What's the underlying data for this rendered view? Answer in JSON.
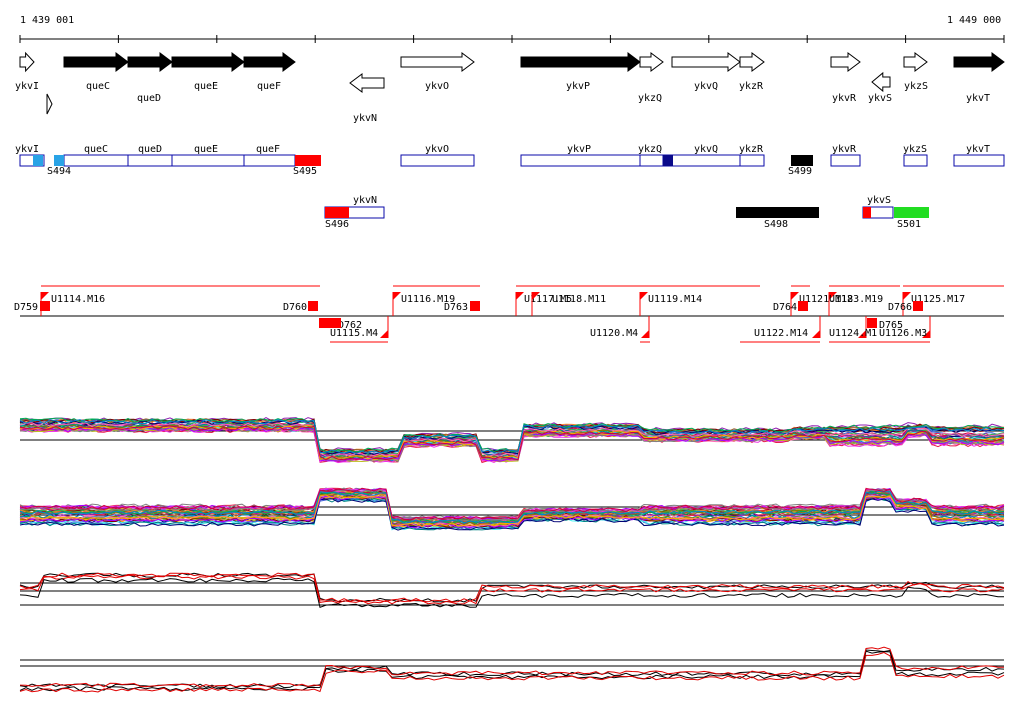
{
  "header": {
    "start_coord": "1 439 001",
    "end_coord": "1 449 000"
  },
  "genes": [
    {
      "name": "ykvI",
      "dir": "+",
      "fill": "white",
      "label_row": 1
    },
    {
      "name": "queC",
      "dir": "+",
      "fill": "black",
      "label_row": 1
    },
    {
      "name": "queD",
      "dir": "+",
      "fill": "black",
      "label_row": 2
    },
    {
      "name": "queE",
      "dir": "+",
      "fill": "black",
      "label_row": 1
    },
    {
      "name": "queF",
      "dir": "+",
      "fill": "black",
      "label_row": 1
    },
    {
      "name": "ykvN",
      "dir": "-",
      "fill": "white",
      "label_row": 3
    },
    {
      "name": "ykvO",
      "dir": "+",
      "fill": "white",
      "label_row": 1
    },
    {
      "name": "ykvP",
      "dir": "+",
      "fill": "black",
      "label_row": 1
    },
    {
      "name": "ykzQ",
      "dir": "+",
      "fill": "white",
      "label_row": 2
    },
    {
      "name": "ykvQ",
      "dir": "+",
      "fill": "white",
      "label_row": 1
    },
    {
      "name": "ykzR",
      "dir": "+",
      "fill": "white",
      "label_row": 1
    },
    {
      "name": "ykvR",
      "dir": "+",
      "fill": "white",
      "label_row": 2
    },
    {
      "name": "ykvS",
      "dir": "-",
      "fill": "white",
      "label_row": 2
    },
    {
      "name": "ykzS",
      "dir": "+",
      "fill": "white",
      "label_row": 1
    },
    {
      "name": "ykvT",
      "dir": "+",
      "fill": "black",
      "label_row": 2
    }
  ],
  "segments": [
    {
      "name": "S494",
      "color": "#29a3e6",
      "track": "top"
    },
    {
      "name": "S495",
      "color": "#ff0000",
      "track": "top"
    },
    {
      "name": "S496",
      "color": "#ff0000",
      "track": "lower"
    },
    {
      "name": "S498",
      "color": "#000000",
      "track": "lower"
    },
    {
      "name": "S499",
      "color": "#000000",
      "track": "top"
    },
    {
      "name": "S501",
      "color": "#22dd22",
      "track": "lower"
    }
  ],
  "upshifts": [
    {
      "name": "U1114.M16",
      "strand": "+"
    },
    {
      "name": "U1115.M4",
      "strand": "-"
    },
    {
      "name": "U1116.M19",
      "strand": "+"
    },
    {
      "name": "U1117.M5",
      "strand": "+"
    },
    {
      "name": "U1118.M11",
      "strand": "+"
    },
    {
      "name": "U1119.M14",
      "strand": "+"
    },
    {
      "name": "U1120.M4",
      "strand": "-"
    },
    {
      "name": "U1121.M18",
      "strand": "+"
    },
    {
      "name": "U1122.M14",
      "strand": "-"
    },
    {
      "name": "U1123.M19",
      "strand": "+"
    },
    {
      "name": "U1124.M1",
      "strand": "-"
    },
    {
      "name": "U1125.M17",
      "strand": "+"
    },
    {
      "name": "U1126.M3",
      "strand": "-"
    }
  ],
  "downshifts": [
    {
      "name": "D759",
      "strand": "+"
    },
    {
      "name": "D760",
      "strand": "+"
    },
    {
      "name": "D762",
      "strand": "-"
    },
    {
      "name": "D763",
      "strand": "+"
    },
    {
      "name": "D764",
      "strand": "+"
    },
    {
      "name": "D766",
      "strand": "+"
    },
    {
      "name": "D765",
      "strand": "-"
    }
  ],
  "colors": {
    "gene_outline": "#0a0aaa",
    "gene_dark_fill": "#0a0a8a",
    "shift_marker": "#ff0000",
    "series_black": "#000000",
    "series_red": "#e00000"
  }
}
